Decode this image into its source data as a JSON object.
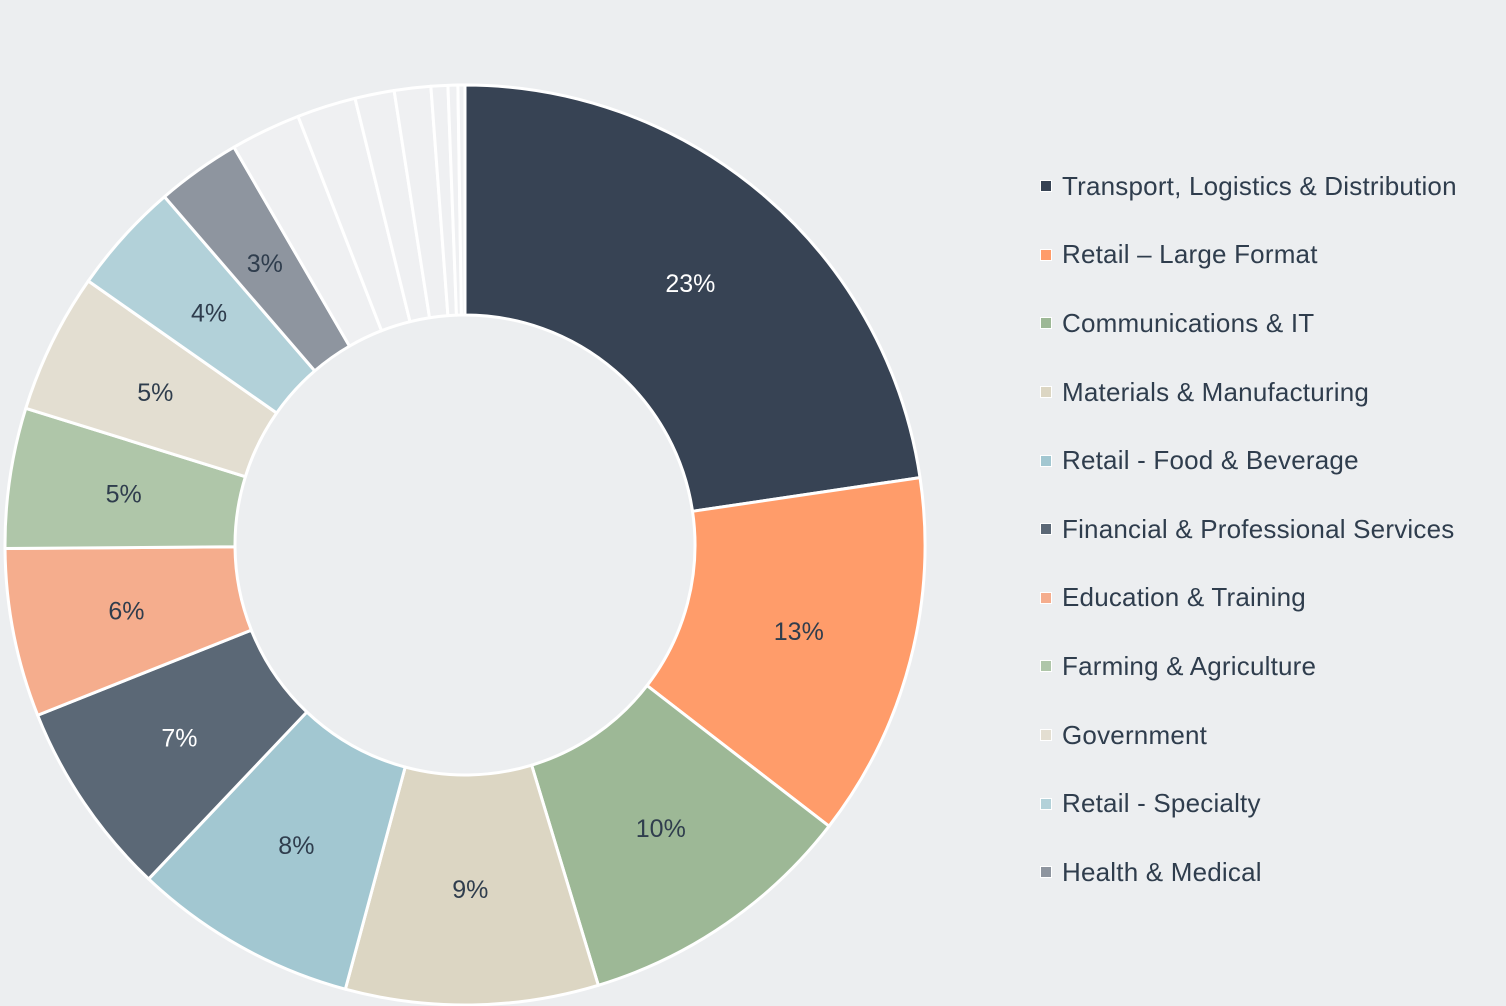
{
  "chart_data": {
    "type": "pie",
    "variant": "donut",
    "title": "",
    "legend_position": "right",
    "slices": [
      {
        "name": "Transport, Logistics & Distribution",
        "value": 23,
        "label": "23%",
        "color": "#374354",
        "label_color": "#ffffff",
        "in_legend": true
      },
      {
        "name": "Retail – Large Format",
        "value": 13,
        "label": "13%",
        "color": "#ff9c6a",
        "label_color": "#2f3d4d",
        "in_legend": true
      },
      {
        "name": "Communications & IT",
        "value": 10,
        "label": "10%",
        "color": "#9db896",
        "label_color": "#2f3d4d",
        "in_legend": true
      },
      {
        "name": "Materials & Manufacturing",
        "value": 9,
        "label": "9%",
        "color": "#dcd6c3",
        "label_color": "#2f3d4d",
        "in_legend": true
      },
      {
        "name": "Retail - Food & Beverage",
        "value": 8,
        "label": "8%",
        "color": "#a2c7d1",
        "label_color": "#2f3d4d",
        "in_legend": true
      },
      {
        "name": "Financial & Professional Services",
        "value": 7,
        "label": "7%",
        "color": "#5b6876",
        "label_color": "#ffffff",
        "in_legend": true
      },
      {
        "name": "Education & Training",
        "value": 6,
        "label": "6%",
        "color": "#f5ad8d",
        "label_color": "#2f3d4d",
        "in_legend": true
      },
      {
        "name": "Farming & Agriculture",
        "value": 5,
        "label": "5%",
        "color": "#afc6a9",
        "label_color": "#2f3d4d",
        "in_legend": true
      },
      {
        "name": "Government",
        "value": 5,
        "label": "5%",
        "color": "#e3ded1",
        "label_color": "#2f3d4d",
        "in_legend": true
      },
      {
        "name": "Retail - Specialty",
        "value": 4,
        "label": "4%",
        "color": "#b2d1d9",
        "label_color": "#2f3d4d",
        "in_legend": true
      },
      {
        "name": "Health & Medical",
        "value": 3,
        "label": "3%",
        "color": "#8e959f",
        "label_color": "#2f3d4d",
        "in_legend": true
      },
      {
        "name": "",
        "value": 2.5,
        "label": "",
        "color": "#eff0f2",
        "label_color": "#2f3d4d",
        "in_legend": false
      },
      {
        "name": "",
        "value": 2.1,
        "label": "",
        "color": "#eff0f2",
        "label_color": "#2f3d4d",
        "in_legend": false
      },
      {
        "name": "",
        "value": 1.4,
        "label": "",
        "color": "#eff0f2",
        "label_color": "#2f3d4d",
        "in_legend": false
      },
      {
        "name": "",
        "value": 1.3,
        "label": "",
        "color": "#eff0f2",
        "label_color": "#2f3d4d",
        "in_legend": false
      },
      {
        "name": "",
        "value": 0.6,
        "label": "",
        "color": "#eff0f2",
        "label_color": "#2f3d4d",
        "in_legend": false
      },
      {
        "name": "",
        "value": 0.35,
        "label": "",
        "color": "#eff0f2",
        "label_color": "#2f3d4d",
        "in_legend": false
      },
      {
        "name": "",
        "value": 0.25,
        "label": "",
        "color": "#eff0f2",
        "label_color": "#2f3d4d",
        "in_legend": false
      }
    ]
  }
}
